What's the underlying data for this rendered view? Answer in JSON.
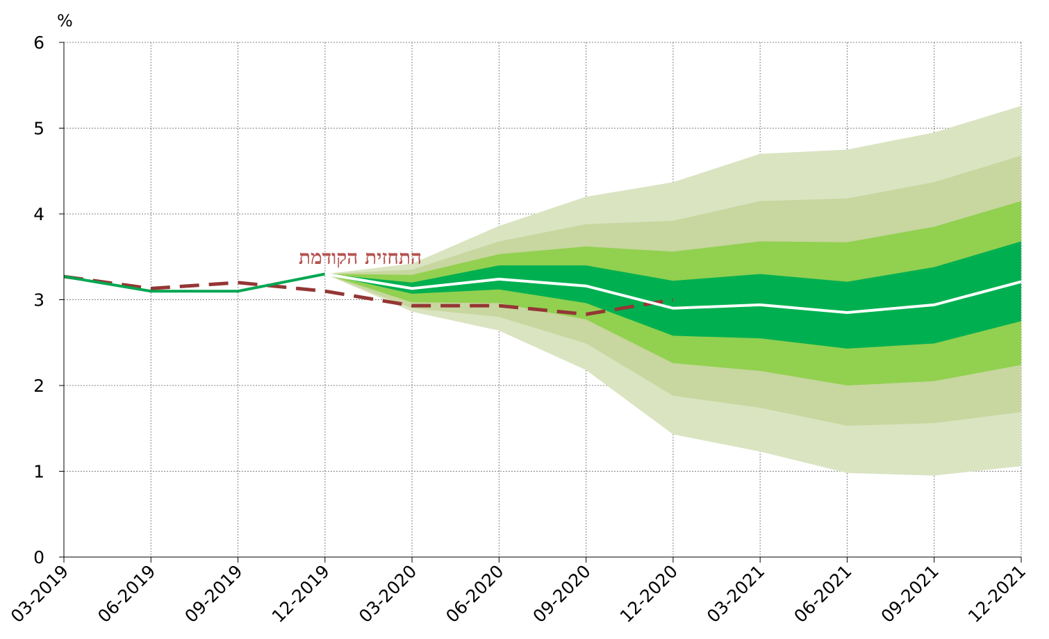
{
  "chart_data": {
    "type": "area",
    "y_unit_label": "%",
    "ylim": [
      0,
      6
    ],
    "y_ticks": [
      0,
      1,
      2,
      3,
      4,
      5,
      6
    ],
    "x_labels": [
      "03-2019",
      "06-2019",
      "09-2019",
      "12-2019",
      "03-2020",
      "06-2020",
      "09-2020",
      "12-2020",
      "03-2021",
      "06-2021",
      "09-2021",
      "12-2021"
    ],
    "grid": true,
    "actual": {
      "color": "#00a651",
      "values": [
        3.27,
        3.1,
        3.1,
        3.3
      ]
    },
    "forecast_central": {
      "color": "#ffffff",
      "start_index": 3,
      "values": [
        3.3,
        3.13,
        3.24,
        3.16,
        2.9,
        2.94,
        2.85,
        2.94,
        3.21
      ]
    },
    "fan_bands": [
      {
        "color": "#dae4c1",
        "start_index": 3,
        "upper": [
          3.3,
          3.42,
          3.86,
          4.2,
          4.37,
          4.7,
          4.75,
          4.95,
          5.26
        ],
        "lower": [
          3.3,
          2.86,
          2.64,
          2.18,
          1.43,
          1.23,
          0.98,
          0.95,
          1.06
        ]
      },
      {
        "color": "#c7d79f",
        "start_index": 3,
        "upper": [
          3.3,
          3.35,
          3.68,
          3.88,
          3.92,
          4.15,
          4.18,
          4.37,
          4.68
        ],
        "lower": [
          3.3,
          2.9,
          2.8,
          2.49,
          1.88,
          1.74,
          1.53,
          1.56,
          1.69
        ]
      },
      {
        "color": "#92d050",
        "start_index": 3,
        "upper": [
          3.3,
          3.29,
          3.53,
          3.62,
          3.56,
          3.68,
          3.67,
          3.85,
          4.15
        ],
        "lower": [
          3.3,
          2.97,
          2.96,
          2.77,
          2.26,
          2.17,
          2.0,
          2.05,
          2.24
        ]
      },
      {
        "color": "#00b050",
        "start_index": 3,
        "upper": [
          3.3,
          3.2,
          3.4,
          3.4,
          3.22,
          3.3,
          3.21,
          3.38,
          3.68
        ],
        "lower": [
          3.3,
          3.07,
          3.12,
          2.96,
          2.58,
          2.55,
          2.43,
          2.49,
          2.75
        ]
      }
    ],
    "previous_forecast": {
      "name": "התחזית הקודמת",
      "color": "#943634",
      "values": [
        3.27,
        3.13,
        3.2,
        3.1,
        2.93,
        2.93,
        2.83,
        3.0
      ]
    }
  }
}
